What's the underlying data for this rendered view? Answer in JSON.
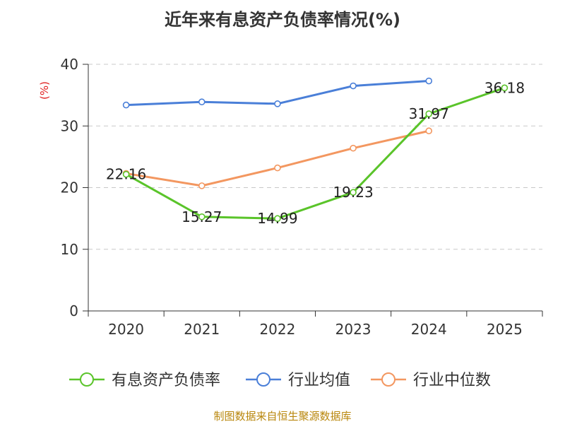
{
  "chart_data": {
    "type": "line",
    "title": "近年来有息资产负债率情况(%)",
    "ylabel": "(%)",
    "xlabel": "",
    "ylim": [
      0,
      40
    ],
    "yticks": [
      "0",
      "10",
      "20",
      "30",
      "40"
    ],
    "categories": [
      "2020",
      "2021",
      "2022",
      "2023",
      "2024",
      "2025"
    ],
    "grid": true,
    "legend_position": "bottom",
    "series": [
      {
        "name": "有息资产负债率",
        "color": "#5ac42a",
        "values": [
          22.16,
          15.27,
          14.99,
          19.23,
          31.97,
          36.18
        ],
        "labels": [
          "22.16",
          "15.27",
          "14.99",
          "19.23",
          "31.97",
          "36.18"
        ]
      },
      {
        "name": "行业均值",
        "color": "#4a7fd8",
        "values": [
          33.4,
          33.9,
          33.6,
          36.5,
          37.3,
          null
        ]
      },
      {
        "name": "行业中位数",
        "color": "#f39760",
        "values": [
          22.3,
          20.3,
          23.2,
          26.4,
          29.2,
          null
        ]
      }
    ]
  },
  "footer": {
    "source": "制图数据来自恒生聚源数据库"
  },
  "colors": {
    "axis": "#333333",
    "grid": "#c8c8c8",
    "ylabel": "#e02020",
    "source": "#b8860b"
  }
}
